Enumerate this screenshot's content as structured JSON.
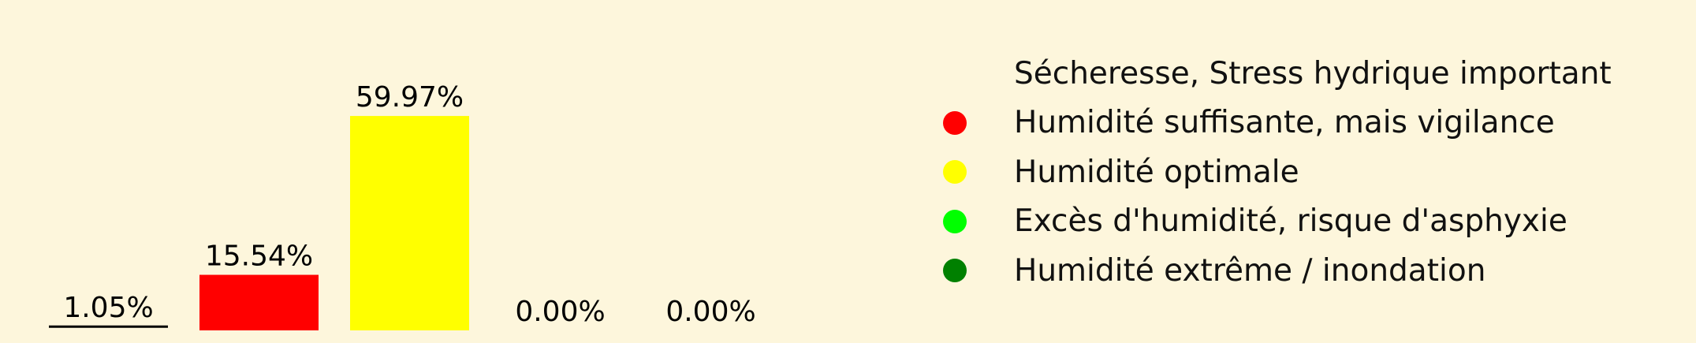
{
  "chart_data": {
    "type": "bar",
    "categories": [
      "Sécheresse, Stress hydrique important",
      "Humidité suffisante, mais vigilance",
      "Humidité optimale",
      "Excès d'humidité, risque d'asphyxie",
      "Humidité extrême / inondation"
    ],
    "values": [
      1.05,
      15.54,
      59.97,
      0.0,
      0.0
    ],
    "data_labels": [
      "1.05%",
      "15.54%",
      "59.97%",
      "0.00%",
      "0.00%"
    ],
    "colors": [
      "#fdf6dc",
      "#ff0000",
      "#ffff00",
      "#00ff00",
      "#008000"
    ],
    "ylim": [
      0,
      73
    ],
    "grid": false,
    "axes_visible": false,
    "legend_placement": "right",
    "title": "",
    "xlabel": "",
    "ylabel": ""
  },
  "legend": {
    "items": [
      {
        "label": "Sécheresse, Stress hydrique important",
        "color": "#fdf6dc",
        "icon": "circle-marker-icon"
      },
      {
        "label": "Humidité suffisante, mais vigilance",
        "color": "#ff0000",
        "icon": "circle-marker-icon"
      },
      {
        "label": "Humidité optimale",
        "color": "#ffff00",
        "icon": "circle-marker-icon"
      },
      {
        "label": "Excès d'humidité, risque d'asphyxie",
        "color": "#00ff00",
        "icon": "circle-marker-icon"
      },
      {
        "label": "Humidité extrême / inondation",
        "color": "#008000",
        "icon": "circle-marker-icon"
      }
    ]
  },
  "colors": {
    "background": "#fdf6dc",
    "text": "#000000"
  }
}
